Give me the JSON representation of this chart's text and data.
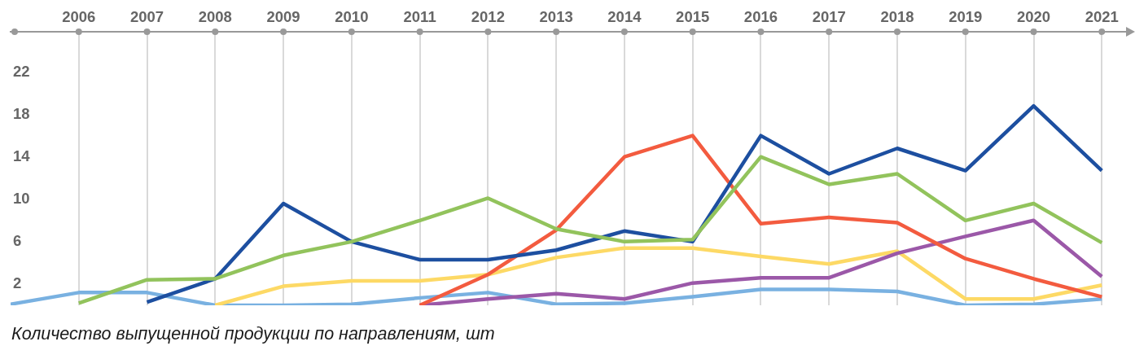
{
  "chart_data": {
    "type": "line",
    "x": [
      2005,
      2006,
      2007,
      2008,
      2009,
      2010,
      2011,
      2012,
      2013,
      2014,
      2015,
      2016,
      2017,
      2018,
      2019,
      2020,
      2021
    ],
    "xlim": [
      2005,
      2021.35
    ],
    "xticks": [
      2006,
      2007,
      2008,
      2009,
      2010,
      2011,
      2012,
      2013,
      2014,
      2015,
      2016,
      2017,
      2018,
      2019,
      2020,
      2021
    ],
    "ylim": [
      0,
      25.8
    ],
    "yticks": [
      2,
      6,
      10,
      14,
      18,
      22
    ],
    "series": [
      {
        "color": "#79b1e1",
        "values": [
          0.1,
          1.2,
          1.2,
          0,
          0,
          0.1,
          0.7,
          1.2,
          0.1,
          0.2,
          0.8,
          1.5,
          1.5,
          1.3,
          0,
          0.1,
          0.6
        ]
      },
      {
        "color": "#fdd965",
        "values": [
          null,
          null,
          null,
          0,
          1.8,
          2.3,
          2.3,
          2.9,
          4.5,
          5.4,
          5.4,
          4.6,
          3.9,
          5.1,
          0.6,
          0.6,
          1.9
        ]
      },
      {
        "color": "#9b58a8",
        "values": [
          null,
          null,
          null,
          null,
          null,
          null,
          0,
          0.6,
          1.1,
          0.6,
          2.1,
          2.6,
          2.6,
          4.9,
          6.5,
          8.0,
          2.7
        ]
      },
      {
        "color": "#f35b3f",
        "values": [
          null,
          null,
          null,
          null,
          null,
          null,
          0,
          2.9,
          7.1,
          14.0,
          16.0,
          7.7,
          8.3,
          7.8,
          4.4,
          2.5,
          0.8
        ]
      },
      {
        "color": "#1d4fa0",
        "values": [
          null,
          null,
          0.3,
          2.5,
          9.6,
          6.0,
          4.3,
          4.3,
          5.2,
          7.0,
          6.0,
          16.0,
          12.4,
          14.8,
          12.7,
          18.8,
          12.7
        ]
      },
      {
        "color": "#92c35c",
        "values": [
          null,
          0.2,
          2.4,
          2.5,
          4.7,
          6.0,
          8.0,
          10.1,
          7.2,
          6.0,
          6.2,
          14.0,
          11.4,
          12.4,
          8.0,
          9.6,
          5.9
        ]
      }
    ],
    "grid": "x",
    "marker": "none",
    "line_style": "solid",
    "annotations": [
      "Количество выпущенной продукции по направлениям, шт"
    ]
  }
}
